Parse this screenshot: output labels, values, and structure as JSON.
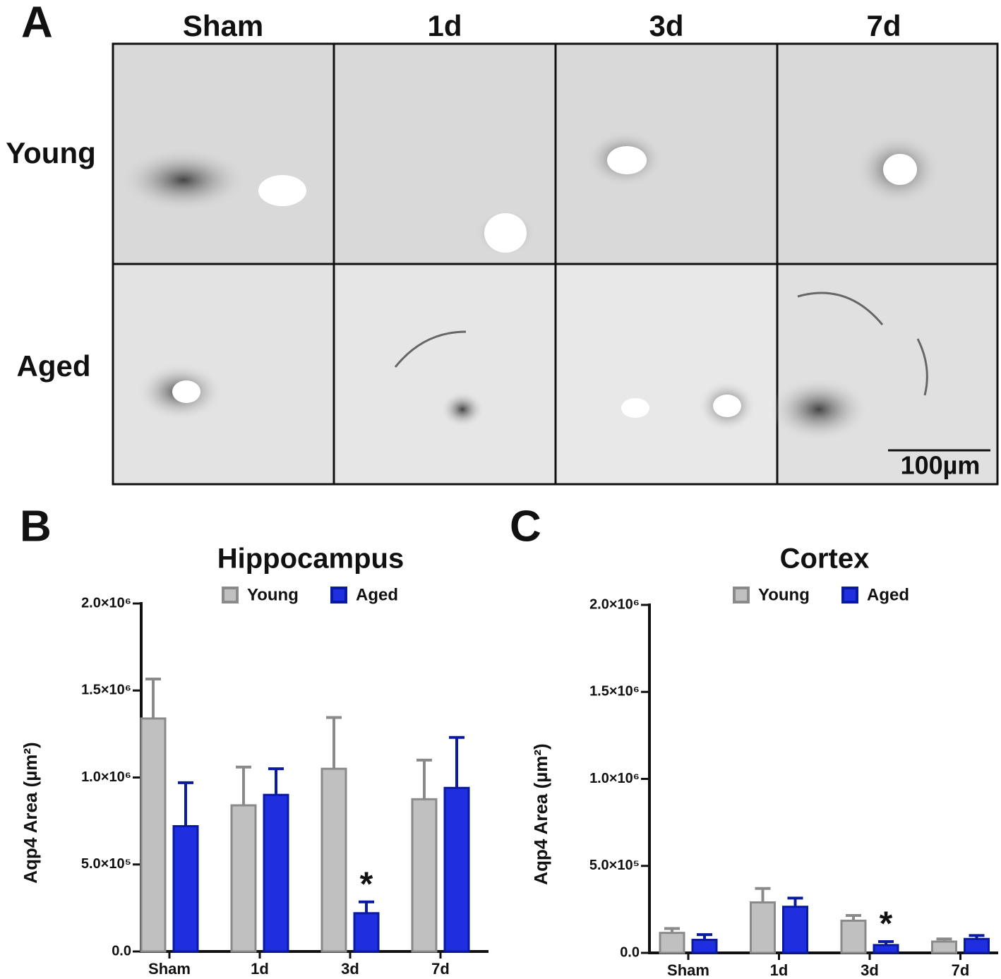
{
  "panel_a": {
    "label": "A",
    "columns": [
      "Sham",
      "1d",
      "3d",
      "7d"
    ],
    "rows": [
      "Young",
      "Aged"
    ],
    "scale_bar": "100µm"
  },
  "chart_data": [
    {
      "panel": "B",
      "type": "bar",
      "title": "Hippocampus",
      "y_label": "Aqp4 Area (µm²)",
      "categories": [
        "Sham",
        "1d",
        "3d",
        "7d"
      ],
      "series": [
        {
          "name": "Young",
          "color": "#c0c0c0",
          "edge_color": "#8a8a8a",
          "values": [
            1339000,
            840000,
            1050000,
            875000
          ],
          "errors": [
            227000,
            220000,
            295000,
            225000
          ]
        },
        {
          "name": "Aged",
          "color": "#1f2fe0",
          "edge_color": "#0a1aa0",
          "values": [
            720000,
            900000,
            220000,
            940000
          ],
          "errors": [
            250000,
            150000,
            65000,
            290000
          ]
        }
      ],
      "ylim": [
        0,
        2000000
      ],
      "yticks": [
        {
          "value": 0,
          "label": "0.0"
        },
        {
          "value": 500000,
          "label": "5.0×10⁵"
        },
        {
          "value": 1000000,
          "label": "1.0×10⁶"
        },
        {
          "value": 1500000,
          "label": "1.5×10⁶"
        },
        {
          "value": 2000000,
          "label": "2.0×10⁶"
        }
      ],
      "annotations": [
        {
          "text": "*",
          "series": "Aged",
          "category": "3d"
        }
      ]
    },
    {
      "panel": "C",
      "type": "bar",
      "title": "Cortex",
      "y_label": "Aqp4 Area (µm²)",
      "categories": [
        "Sham",
        "1d",
        "3d",
        "7d"
      ],
      "series": [
        {
          "name": "Young",
          "color": "#c0c0c0",
          "edge_color": "#8a8a8a",
          "values": [
            115000,
            290000,
            185000,
            65000
          ],
          "errors": [
            25000,
            80000,
            30000,
            15000
          ]
        },
        {
          "name": "Aged",
          "color": "#1f2fe0",
          "edge_color": "#0a1aa0",
          "values": [
            75000,
            265000,
            45000,
            80000
          ],
          "errors": [
            30000,
            50000,
            20000,
            20000
          ]
        }
      ],
      "ylim": [
        0,
        2000000
      ],
      "yticks": [
        {
          "value": 0,
          "label": "0.0"
        },
        {
          "value": 500000,
          "label": "5.0×10⁵"
        },
        {
          "value": 1000000,
          "label": "1.0×10⁶"
        },
        {
          "value": 1500000,
          "label": "1.5×10⁶"
        },
        {
          "value": 2000000,
          "label": "2.0×10⁶"
        }
      ],
      "annotations": [
        {
          "text": "*",
          "series": "Aged",
          "category": "3d"
        }
      ]
    }
  ]
}
